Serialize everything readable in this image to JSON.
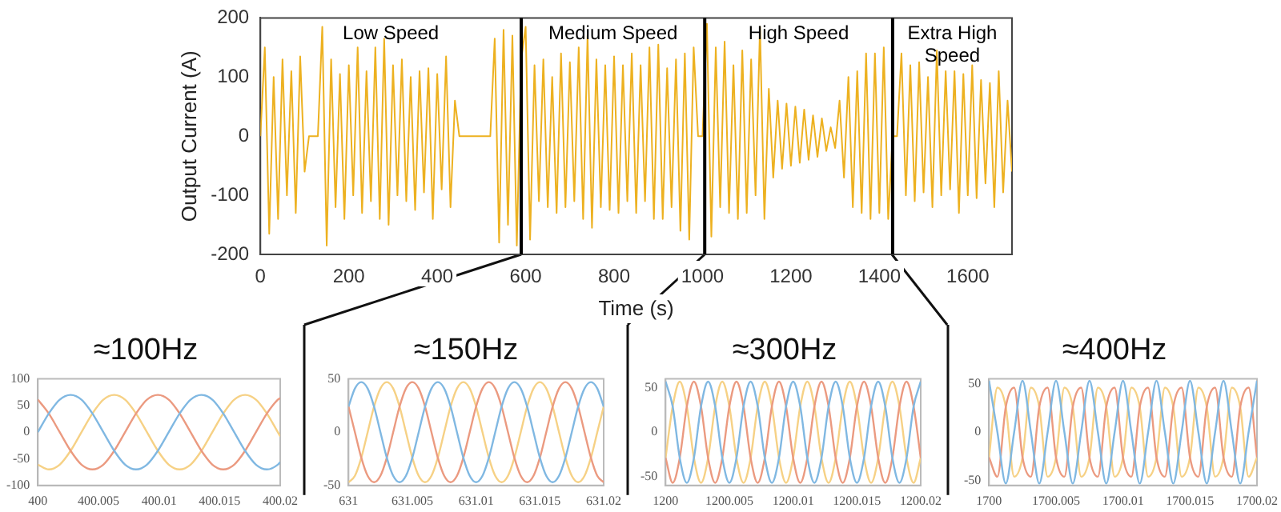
{
  "chart_data": [
    {
      "type": "line",
      "xlabel": "Time (s)",
      "ylabel": "Output Current (A)",
      "xlim": [
        0,
        1700
      ],
      "xticks": [
        0,
        200,
        400,
        600,
        800,
        1000,
        1200,
        1400,
        1600
      ],
      "ylim": [
        -200,
        200
      ],
      "yticks": [
        -200,
        -100,
        0,
        100,
        200
      ],
      "marker": "none",
      "x": [
        0,
        10,
        20,
        30,
        40,
        50,
        60,
        70,
        80,
        90,
        100,
        110,
        120,
        130,
        140,
        150,
        160,
        170,
        180,
        190,
        200,
        210,
        220,
        230,
        240,
        250,
        260,
        270,
        280,
        290,
        300,
        310,
        320,
        330,
        340,
        350,
        360,
        370,
        380,
        390,
        400,
        410,
        420,
        430,
        440,
        450,
        460,
        470,
        480,
        490,
        500,
        510,
        520,
        530,
        540,
        550,
        560,
        570,
        580,
        590,
        600,
        610,
        620,
        630,
        640,
        650,
        660,
        670,
        680,
        690,
        700,
        710,
        720,
        730,
        740,
        750,
        760,
        770,
        780,
        790,
        800,
        810,
        820,
        830,
        840,
        850,
        860,
        870,
        880,
        890,
        900,
        910,
        920,
        930,
        940,
        950,
        960,
        970,
        980,
        990,
        1000,
        1010,
        1020,
        1030,
        1040,
        1050,
        1060,
        1070,
        1080,
        1090,
        1100,
        1110,
        1120,
        1130,
        1140,
        1150,
        1160,
        1170,
        1180,
        1190,
        1200,
        1210,
        1220,
        1230,
        1240,
        1250,
        1260,
        1270,
        1280,
        1290,
        1300,
        1310,
        1320,
        1330,
        1340,
        1350,
        1360,
        1370,
        1380,
        1390,
        1400,
        1410,
        1420,
        1430,
        1440,
        1450,
        1460,
        1470,
        1480,
        1490,
        1500,
        1510,
        1520,
        1530,
        1540,
        1550,
        1560,
        1570,
        1580,
        1590,
        1600,
        1610,
        1620,
        1630,
        1640,
        1650,
        1660,
        1670,
        1680,
        1690,
        1700
      ],
      "series": [
        {
          "color": "#edb120",
          "values": [
            0,
            150,
            -165,
            100,
            -140,
            130,
            -100,
            110,
            -130,
            135,
            -60,
            0,
            0,
            0,
            185,
            -185,
            130,
            -120,
            105,
            -140,
            120,
            -100,
            150,
            -130,
            110,
            -110,
            150,
            -140,
            165,
            -150,
            120,
            -100,
            130,
            -110,
            100,
            -125,
            110,
            -95,
            115,
            -140,
            105,
            -90,
            135,
            -120,
            60,
            0,
            0,
            0,
            0,
            0,
            0,
            0,
            0,
            165,
            -180,
            180,
            -150,
            170,
            -185,
            130,
            185,
            -175,
            120,
            -110,
            130,
            -120,
            100,
            -130,
            140,
            -120,
            125,
            -110,
            150,
            -140,
            170,
            -155,
            130,
            -120,
            120,
            -125,
            135,
            -130,
            120,
            -110,
            140,
            -130,
            120,
            -110,
            150,
            -140,
            155,
            -140,
            115,
            -120,
            130,
            -160,
            140,
            -175,
            150,
            0,
            0,
            190,
            -170,
            150,
            -120,
            160,
            -130,
            120,
            -140,
            145,
            -130,
            130,
            -100,
            185,
            -140,
            80,
            -70,
            60,
            -55,
            55,
            -50,
            50,
            -45,
            45,
            -40,
            35,
            -35,
            30,
            -25,
            15,
            -20,
            60,
            -70,
            100,
            -120,
            110,
            -130,
            140,
            -140,
            140,
            -130,
            150,
            -140,
            0,
            0,
            140,
            -100,
            120,
            -110,
            125,
            -95,
            100,
            -120,
            145,
            -100,
            110,
            -90,
            110,
            -130,
            105,
            -100,
            120,
            -105,
            95,
            -80,
            90,
            -120,
            110,
            -95,
            60,
            -60
          ]
        }
      ],
      "ref_lines": [
        {
          "axis": "x",
          "value": 590,
          "color": "#000000"
        },
        {
          "axis": "x",
          "value": 1005,
          "color": "#000000"
        },
        {
          "axis": "x",
          "value": 1430,
          "color": "#000000"
        }
      ],
      "annotations": [
        "Low Speed",
        "Medium Speed",
        "High Speed",
        "Extra High Speed"
      ]
    },
    {
      "type": "line",
      "title": "≈100Hz",
      "xlim": [
        400,
        400.02
      ],
      "xticks": [
        400,
        400.005,
        400.01,
        400.015,
        400.02
      ],
      "ylim": [
        -100,
        100
      ],
      "yticks": [
        -100,
        -50,
        0,
        50,
        100
      ],
      "marker": "none",
      "x": [
        400,
        400.0009,
        400.0018,
        400.0027,
        400.0036,
        400.0045,
        400.0054,
        400.0063,
        400.0072,
        400.0081,
        400.009,
        400.0099,
        400.0108,
        400.0117,
        400.0126,
        400.0135,
        400.0144,
        400.0153,
        400.0162,
        400.0171,
        400.018,
        400.0189,
        400.0198,
        400.02
      ],
      "series": [
        {
          "color": "#80b8e2",
          "values": [
            0,
            35,
            61,
            70,
            61,
            35,
            0,
            -35,
            -61,
            -70,
            -61,
            -35,
            0,
            35,
            61,
            70,
            61,
            35,
            0,
            -35,
            -61,
            -70,
            -61,
            -56
          ]
        },
        {
          "color": "#eb9a80",
          "values": [
            61,
            35,
            0,
            -35,
            -61,
            -70,
            -61,
            -35,
            0,
            35,
            61,
            70,
            61,
            35,
            0,
            -35,
            -61,
            -70,
            -61,
            -35,
            0,
            35,
            61,
            64
          ]
        },
        {
          "color": "#f6d185",
          "values": [
            -61,
            -70,
            -61,
            -35,
            0,
            35,
            61,
            70,
            61,
            35,
            0,
            -35,
            -61,
            -70,
            -61,
            -35,
            0,
            35,
            61,
            70,
            61,
            35,
            0,
            -8
          ]
        }
      ]
    },
    {
      "type": "line",
      "title": "≈150Hz",
      "xlim": [
        631,
        631.02
      ],
      "xticks": [
        631,
        631.005,
        631.01,
        631.015,
        631.02
      ],
      "ylim": [
        -50,
        50
      ],
      "yticks": [
        -50,
        0,
        50
      ],
      "marker": "none",
      "x": [
        631,
        631.0005,
        631.001,
        631.0015,
        631.002,
        631.0025,
        631.003,
        631.0035,
        631.004,
        631.0045,
        631.005,
        631.0055,
        631.006,
        631.0065,
        631.007,
        631.0075,
        631.008,
        631.0085,
        631.009,
        631.0095,
        631.01,
        631.0105,
        631.011,
        631.0115,
        631.012,
        631.0125,
        631.013,
        631.0135,
        631.014,
        631.0145,
        631.015,
        631.0155,
        631.016,
        631.0165,
        631.017,
        631.0175,
        631.018,
        631.0185,
        631.019,
        631.0195,
        631.02
      ],
      "series": [
        {
          "color": "#80b8e2",
          "values": [
            24,
            41,
            47,
            41,
            24,
            0,
            -24,
            -41,
            -47,
            -41,
            -24,
            0,
            24,
            41,
            47,
            41,
            24,
            0,
            -24,
            -41,
            -47,
            -41,
            -24,
            0,
            24,
            41,
            47,
            41,
            24,
            0,
            -24,
            -41,
            -47,
            -41,
            -24,
            0,
            24,
            41,
            47,
            41,
            24
          ]
        },
        {
          "color": "#eb9a80",
          "values": [
            24,
            0,
            -24,
            -41,
            -47,
            -41,
            -24,
            0,
            24,
            41,
            47,
            41,
            24,
            0,
            -24,
            -41,
            -47,
            -41,
            -24,
            0,
            24,
            41,
            47,
            41,
            24,
            0,
            -24,
            -41,
            -47,
            -41,
            -24,
            0,
            24,
            41,
            47,
            41,
            24,
            0,
            -24,
            -41,
            -47
          ]
        },
        {
          "color": "#f6d185",
          "values": [
            -47,
            -41,
            -24,
            0,
            24,
            41,
            47,
            41,
            24,
            0,
            -24,
            -41,
            -47,
            -41,
            -24,
            0,
            24,
            41,
            47,
            41,
            24,
            0,
            -24,
            -41,
            -47,
            -41,
            -24,
            0,
            24,
            41,
            47,
            41,
            24,
            0,
            -24,
            -41,
            -47,
            -41,
            -24,
            0,
            24
          ]
        }
      ]
    },
    {
      "type": "line",
      "title": "≈300Hz",
      "xlim": [
        1200,
        1200.02
      ],
      "xticks": [
        1200,
        1200.005,
        1200.01,
        1200.015,
        1200.02
      ],
      "ylim": [
        -60,
        60
      ],
      "yticks": [
        -50,
        0,
        50
      ],
      "marker": "none",
      "x": [
        1200,
        1200.000556,
        1200.001111,
        1200.001667,
        1200.002222,
        1200.002778,
        1200.003333,
        1200.003889,
        1200.004444,
        1200.005,
        1200.005556,
        1200.006111,
        1200.006667,
        1200.007222,
        1200.007778,
        1200.008333,
        1200.008889,
        1200.009444,
        1200.01,
        1200.010556,
        1200.011111,
        1200.011667,
        1200.012222,
        1200.012778,
        1200.013333,
        1200.013889,
        1200.014444,
        1200.015,
        1200.015556,
        1200.016111,
        1200.016667,
        1200.017222,
        1200.017778,
        1200.018333,
        1200.018889,
        1200.019444,
        1200.02
      ],
      "series": [
        {
          "color": "#80b8e2",
          "values": [
            57,
            29,
            -29,
            -57,
            -29,
            29,
            57,
            29,
            -29,
            -57,
            -29,
            29,
            57,
            29,
            -29,
            -57,
            -29,
            29,
            57,
            29,
            -29,
            -57,
            -29,
            29,
            57,
            29,
            -29,
            -57,
            -29,
            29,
            57,
            29,
            -29,
            -57,
            -29,
            29,
            57
          ]
        },
        {
          "color": "#eb9a80",
          "values": [
            -29,
            -57,
            -29,
            29,
            57,
            29,
            -29,
            -57,
            -29,
            29,
            57,
            29,
            -29,
            -57,
            -29,
            29,
            57,
            29,
            -29,
            -57,
            -29,
            29,
            57,
            29,
            -29,
            -57,
            -29,
            29,
            57,
            29,
            -29,
            -57,
            -29,
            29,
            57,
            29,
            -29
          ]
        },
        {
          "color": "#f6d185",
          "values": [
            -29,
            29,
            57,
            29,
            -29,
            -57,
            -29,
            29,
            57,
            29,
            -29,
            -57,
            -29,
            29,
            57,
            29,
            -29,
            -57,
            -29,
            29,
            57,
            29,
            -29,
            -57,
            -29,
            29,
            57,
            29,
            -29,
            -57,
            -29,
            29,
            57,
            29,
            -29,
            -57,
            -29
          ]
        }
      ]
    },
    {
      "type": "line",
      "title": "≈400Hz",
      "xlim": [
        1700,
        1700.02
      ],
      "xticks": [
        1700,
        1700.005,
        1700.01,
        1700.015,
        1700.02
      ],
      "ylim": [
        -55,
        55
      ],
      "yticks": [
        -50,
        0,
        50
      ],
      "marker": "none",
      "x": [
        1700,
        1700.000625,
        1700.00125,
        1700.001875,
        1700.0025,
        1700.003125,
        1700.00375,
        1700.004375,
        1700.005,
        1700.005625,
        1700.00625,
        1700.006875,
        1700.0075,
        1700.008125,
        1700.00875,
        1700.009375,
        1700.01,
        1700.010625,
        1700.01125,
        1700.011875,
        1700.0125,
        1700.013125,
        1700.01375,
        1700.014375,
        1700.015,
        1700.015625,
        1700.01625,
        1700.016875,
        1700.0175,
        1700.018125,
        1700.01875,
        1700.019375,
        1700.02
      ],
      "series": [
        {
          "color": "#80b8e2",
          "values": [
            53,
            0,
            -53,
            0,
            53,
            0,
            -53,
            0,
            53,
            0,
            -53,
            0,
            53,
            0,
            -53,
            0,
            53,
            0,
            -53,
            0,
            53,
            0,
            -53,
            0,
            53,
            0,
            -53,
            0,
            53,
            0,
            -53,
            0,
            53
          ]
        },
        {
          "color": "#eb9a80",
          "values": [
            -26,
            -46,
            26,
            46,
            -26,
            -46,
            26,
            46,
            -26,
            -46,
            26,
            46,
            -26,
            -46,
            26,
            46,
            -26,
            -46,
            26,
            46,
            -26,
            -46,
            26,
            46,
            -26,
            -46,
            26,
            46,
            -26,
            -46,
            26,
            46,
            -26
          ]
        },
        {
          "color": "#f6d185",
          "values": [
            -26,
            46,
            26,
            -46,
            -26,
            46,
            26,
            -46,
            -26,
            46,
            26,
            -46,
            -26,
            46,
            26,
            -46,
            -26,
            46,
            26,
            -46,
            -26,
            46,
            26,
            -46,
            -26,
            46,
            26,
            -46,
            -26,
            46,
            26,
            -46,
            -26
          ]
        }
      ]
    }
  ]
}
